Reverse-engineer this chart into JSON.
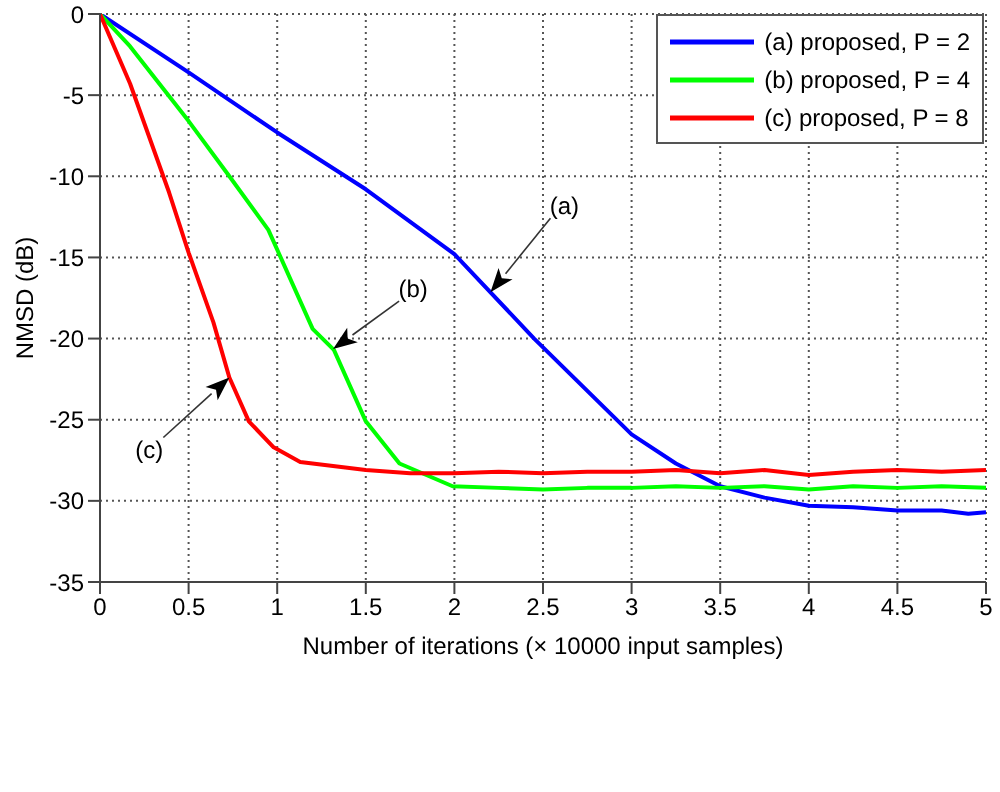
{
  "chart_data": {
    "type": "line",
    "xlabel": "Number of iterations (× 10000 input samples)",
    "ylabel": "NMSD (dB)",
    "xlim": [
      0,
      5
    ],
    "xticks": [
      0,
      0.5,
      1,
      1.5,
      2,
      2.5,
      3,
      3.5,
      4,
      4.5,
      5
    ],
    "ylim": [
      -35,
      0
    ],
    "yticks": [
      -35,
      -30,
      -25,
      -20,
      -15,
      -10,
      -5,
      0
    ],
    "grid": true,
    "legend": "top right",
    "marker": "none",
    "line_style": "solid",
    "series": [
      {
        "name": "(a) proposed, P = 2",
        "color": "#0000ff",
        "x": [
          0,
          0.5,
          1,
          1.5,
          2,
          2.45,
          3,
          3.25,
          3.5,
          3.75,
          4,
          4.25,
          4.5,
          4.75,
          4.9,
          5
        ],
        "values": [
          0,
          -3.6,
          -7.3,
          -10.8,
          -14.8,
          -20,
          -25.9,
          -27.7,
          -29.1,
          -29.8,
          -30.3,
          -30.4,
          -30.6,
          -30.6,
          -30.8,
          -30.7
        ]
      },
      {
        "name": "(b) proposed, P = 4",
        "color": "#00ff00",
        "x": [
          0,
          0.17,
          0.5,
          0.73,
          0.95,
          1.2,
          1.32,
          1.5,
          1.69,
          1.99,
          2.25,
          2.5,
          2.75,
          3,
          3.25,
          3.5,
          3.75,
          4,
          4.25,
          4.5,
          4.75,
          5
        ],
        "values": [
          0,
          -2,
          -6.6,
          -10,
          -13.3,
          -19.4,
          -20.7,
          -25.1,
          -27.7,
          -29.1,
          -29.2,
          -29.3,
          -29.2,
          -29.2,
          -29.1,
          -29.2,
          -29.1,
          -29.3,
          -29.1,
          -29.2,
          -29.1,
          -29.2
        ]
      },
      {
        "name": "(c) proposed, P = 8",
        "color": "#ff0000",
        "x": [
          0,
          0.17,
          0.39,
          0.5,
          0.64,
          0.73,
          0.84,
          0.98,
          1.13,
          1.5,
          1.75,
          2,
          2.25,
          2.5,
          2.75,
          3,
          3.25,
          3.5,
          3.75,
          4,
          4.25,
          4.5,
          4.75,
          5
        ],
        "values": [
          0,
          -4.3,
          -11,
          -14.7,
          -19,
          -22.4,
          -25.1,
          -26.7,
          -27.6,
          -28.1,
          -28.3,
          -28.3,
          -28.2,
          -28.3,
          -28.2,
          -28.2,
          -28.1,
          -28.3,
          -28.1,
          -28.4,
          -28.2,
          -28.1,
          -28.2,
          -28.1
        ]
      }
    ],
    "annotations": [
      "(a)",
      "(b)",
      "(c)"
    ]
  }
}
